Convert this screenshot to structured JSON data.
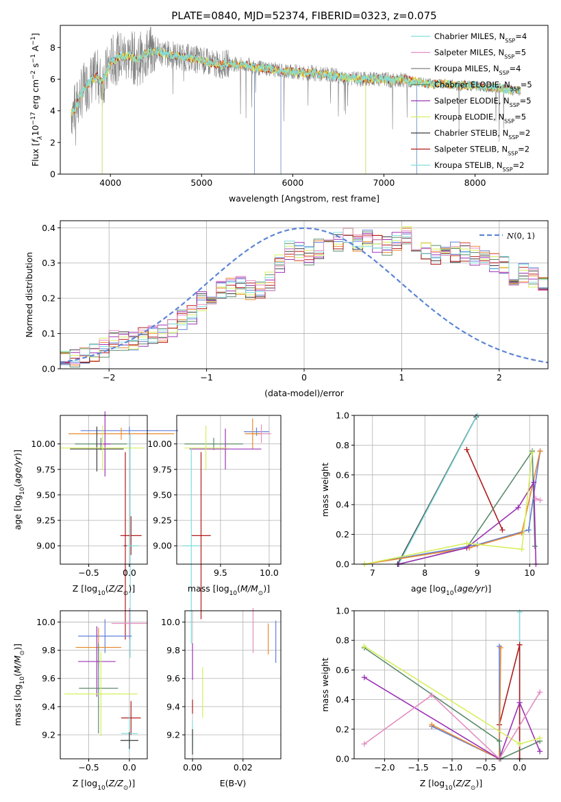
{
  "title": "PLATE=0840, MJD=52374, FIBERID=0323, z=0.075",
  "colors": {
    "Chabrier MILES": "#5e7fd8",
    "Salpeter MILES": "#e98a2f",
    "Kroupa MILES": "#5a8a6a",
    "Chabrier ELODIE": "#3a3a3a",
    "Salpeter ELODIE": "#9b30b5",
    "Kroupa ELODIE": "#d4ef5a",
    "Chabrier STELIB": "#666666",
    "Salpeter STELIB": "#b01818",
    "Kroupa STELIB": "#7fdcdc",
    "data": "#808080",
    "pinkish": "#e38cc0",
    "gauss": "#5b84d6"
  },
  "chart_data": [
    {
      "type": "line",
      "name": "spectrum",
      "xlabel": "wavelength [Angstrom, rest frame]",
      "ylabel": "Flux [f_λ 10^-17 erg cm^-2 s^-1 A^-1]",
      "xlim": [
        3450,
        8800
      ],
      "ylim": [
        0,
        9.4
      ],
      "xticks": [
        4000,
        5000,
        6000,
        7000,
        8000
      ],
      "yticks": [
        0,
        2,
        4,
        6,
        8
      ],
      "legend_position": "upper right",
      "legend": [
        {
          "label": "Chabrier MILES, N",
          "sub": "SSP",
          "suffix": "=4",
          "color": "#7fdcdc"
        },
        {
          "label": "Salpeter MILES, N",
          "sub": "SSP",
          "suffix": "=5",
          "color": "#e38cc0"
        },
        {
          "label": "Kroupa MILES, N",
          "sub": "SSP",
          "suffix": "=4",
          "color": "#808080"
        },
        {
          "label": "Chabrier ELODIE, N",
          "sub": "SSP",
          "suffix": "=5",
          "color": "#5a8a6a"
        },
        {
          "label": "Salpeter ELODIE, N",
          "sub": "SSP",
          "suffix": "=5",
          "color": "#9b30b5"
        },
        {
          "label": "Kroupa ELODIE, N",
          "sub": "SSP",
          "suffix": "=5",
          "color": "#d4ef5a"
        },
        {
          "label": "Chabrier STELIB, N",
          "sub": "SSP",
          "suffix": "=2",
          "color": "#3a3a3a"
        },
        {
          "label": "Salpeter STELIB, N",
          "sub": "SSP",
          "suffix": "=2",
          "color": "#b01818"
        },
        {
          "label": "Kroupa STELIB, N",
          "sub": "SSP",
          "suffix": "=2",
          "color": "#7fdcdc"
        }
      ],
      "model_continuum": [
        [
          3570,
          3.9
        ],
        [
          3620,
          4.2
        ],
        [
          3700,
          5.3
        ],
        [
          3780,
          5.9
        ],
        [
          3860,
          6.2
        ],
        [
          3900,
          5.8
        ],
        [
          3960,
          6.4
        ],
        [
          4000,
          7.1
        ],
        [
          4100,
          7.4
        ],
        [
          4200,
          7.5
        ],
        [
          4300,
          7.2
        ],
        [
          4400,
          7.7
        ],
        [
          4500,
          7.8
        ],
        [
          4600,
          7.6
        ],
        [
          4700,
          7.5
        ],
        [
          4800,
          7.4
        ],
        [
          4900,
          7.3
        ],
        [
          5000,
          7.2
        ],
        [
          5100,
          7.0
        ],
        [
          5200,
          6.9
        ],
        [
          5300,
          7.0
        ],
        [
          5400,
          6.9
        ],
        [
          5500,
          6.9
        ],
        [
          5600,
          6.7
        ],
        [
          5700,
          6.7
        ],
        [
          5800,
          6.6
        ],
        [
          5900,
          6.5
        ],
        [
          6000,
          6.5
        ],
        [
          6100,
          6.4
        ],
        [
          6200,
          6.4
        ],
        [
          6300,
          6.3
        ],
        [
          6400,
          6.3
        ],
        [
          6500,
          6.2
        ],
        [
          6600,
          6.1
        ],
        [
          6700,
          6.0
        ],
        [
          6800,
          6.0
        ],
        [
          6900,
          6.0
        ],
        [
          7000,
          6.0
        ],
        [
          7100,
          5.9
        ],
        [
          7200,
          6.0
        ],
        [
          7300,
          5.9
        ],
        [
          7400,
          5.8
        ],
        [
          7500,
          5.7
        ],
        [
          7600,
          5.7
        ],
        [
          7700,
          5.7
        ],
        [
          7800,
          5.6
        ],
        [
          7900,
          5.6
        ],
        [
          8000,
          5.6
        ],
        [
          8100,
          5.5
        ],
        [
          8200,
          5.5
        ],
        [
          8300,
          5.4
        ],
        [
          8400,
          5.3
        ],
        [
          8500,
          5.3
        ]
      ]
    },
    {
      "type": "line",
      "name": "residual-histogram",
      "xlabel": "(data-model)/error",
      "ylabel": "Normed distribution",
      "xlim": [
        -2.5,
        2.5
      ],
      "ylim": [
        0,
        0.42
      ],
      "xticks": [
        -2,
        -1,
        0,
        1,
        2
      ],
      "yticks": [
        0.0,
        0.1,
        0.2,
        0.3,
        0.4
      ],
      "grid": true,
      "legend_position": "upper right",
      "legend": [
        {
          "label": "N(0,1)"
        }
      ],
      "bin_width": 0.1,
      "histogram_range": [
        -2.5,
        2.5
      ],
      "histogram_values": [
        0.03,
        0.03,
        0.04,
        0.05,
        0.06,
        0.08,
        0.08,
        0.08,
        0.09,
        0.1,
        0.1,
        0.12,
        0.14,
        0.15,
        0.19,
        0.2,
        0.22,
        0.23,
        0.24,
        0.22,
        0.22,
        0.25,
        0.3,
        0.34,
        0.33,
        0.32,
        0.34,
        0.36,
        0.36,
        0.37,
        0.36,
        0.37,
        0.36,
        0.35,
        0.36,
        0.38,
        0.35,
        0.33,
        0.32,
        0.33,
        0.33,
        0.33,
        0.32,
        0.32,
        0.3,
        0.29,
        0.26,
        0.27,
        0.26,
        0.24
      ]
    },
    {
      "type": "scatter",
      "name": "age-vs-Z",
      "xlabel": "Z [log10(Z/Z⊙)]",
      "ylabel": "age  [log10(age/yr)]",
      "xlim": [
        -0.85,
        0.22
      ],
      "ylim": [
        8.82,
        10.28
      ],
      "xticks": [
        -0.5,
        0.0
      ],
      "yticks": [
        9.0,
        9.25,
        9.5,
        9.75,
        10.0
      ],
      "points": [
        {
          "x": 0.0,
          "y": 10.13,
          "xerr": 0.6,
          "yerr": 0.04,
          "color": "#5e7fd8"
        },
        {
          "x": -0.1,
          "y": 10.1,
          "xerr": 0.65,
          "yerr": 0.06,
          "color": "#e98a2f"
        },
        {
          "x": -0.35,
          "y": 10.0,
          "xerr": 0.32,
          "yerr": 0.06,
          "color": "#5a8a6a"
        },
        {
          "x": -0.4,
          "y": 9.95,
          "xerr": 0.33,
          "yerr": 0.22,
          "color": "#3a3a3a"
        },
        {
          "x": -0.3,
          "y": 10.0,
          "xerr": 0.07,
          "yerr": 0.32,
          "color": "#9b30b5"
        },
        {
          "x": -0.33,
          "y": 9.96,
          "xerr": 0.52,
          "yerr": 0.22,
          "color": "#d4ef5a"
        },
        {
          "x": 0.02,
          "y": 9.1,
          "xerr": 0.13,
          "yerr": 0.19,
          "color": "#b01818"
        },
        {
          "x": 0.01,
          "y": 9.0,
          "xerr": 0.1,
          "yerr": 1.1,
          "color": "#7fdcdc"
        },
        {
          "x": -0.05,
          "y": 9.0,
          "xerr": 0.02,
          "yerr": 0.92,
          "color": "#b01818"
        }
      ]
    },
    {
      "type": "scatter",
      "name": "age-vs-mass",
      "xlabel": "mass [log10(M/M⊙)]",
      "ylabel": "",
      "xlim": [
        9.05,
        10.12
      ],
      "ylim": [
        8.82,
        10.28
      ],
      "xticks": [
        9.5,
        10.0
      ],
      "yticks": [
        9.0,
        9.25,
        9.5,
        9.75,
        10.0
      ],
      "points": [
        {
          "x": 9.87,
          "y": 10.12,
          "xerr": 0.13,
          "yerr": 0.04,
          "color": "#5e7fd8"
        },
        {
          "x": 9.92,
          "y": 10.1,
          "xerr": 0.1,
          "yerr": 0.09,
          "color": "#e38cc0"
        },
        {
          "x": 9.83,
          "y": 10.1,
          "xerr": 0.08,
          "yerr": 0.15,
          "color": "#e98a2f"
        },
        {
          "x": 9.43,
          "y": 10.0,
          "xerr": 0.3,
          "yerr": 0.06,
          "color": "#5a8a6a"
        },
        {
          "x": 9.55,
          "y": 9.95,
          "xerr": 0.37,
          "yerr": 0.2,
          "color": "#9b30b5"
        },
        {
          "x": 9.35,
          "y": 9.96,
          "xerr": 0.22,
          "yerr": 0.22,
          "color": "#d4ef5a"
        },
        {
          "x": 9.3,
          "y": 9.1,
          "xerr": 0.1,
          "yerr": 0.82,
          "color": "#b01818"
        },
        {
          "x": 9.2,
          "y": 9.0,
          "xerr": 0.09,
          "yerr": 0.96,
          "color": "#7fdcdc"
        }
      ]
    },
    {
      "type": "line",
      "name": "weight-vs-age",
      "xlabel": "age  [log10(age/yr)]",
      "ylabel": "mass weight",
      "xlim": [
        6.65,
        10.35
      ],
      "ylim": [
        0,
        1.0
      ],
      "xticks": [
        7,
        8,
        9,
        10
      ],
      "yticks": [
        0.0,
        0.2,
        0.4,
        0.6,
        0.8,
        1.0
      ],
      "grid": true,
      "series": [
        {
          "color": "#3a3a3a",
          "points": [
            [
              7.48,
              0.0
            ],
            [
              8.98,
              0.99
            ]
          ]
        },
        {
          "color": "#7fdcdc",
          "points": [
            [
              7.5,
              0.0
            ],
            [
              9.0,
              1.0
            ]
          ]
        },
        {
          "color": "#b01818",
          "points": [
            [
              8.8,
              0.77
            ],
            [
              9.48,
              0.23
            ]
          ]
        },
        {
          "color": "#5e7fd8",
          "points": [
            [
              6.85,
              0.0
            ],
            [
              9.0,
              0.13
            ],
            [
              9.98,
              0.23
            ],
            [
              10.2,
              0.76
            ]
          ]
        },
        {
          "color": "#e98a2f",
          "points": [
            [
              6.85,
              0.0
            ],
            [
              8.85,
              0.11
            ],
            [
              9.85,
              0.21
            ],
            [
              10.2,
              0.76
            ]
          ]
        },
        {
          "color": "#5a8a6a",
          "points": [
            [
              7.5,
              0.0
            ],
            [
              8.8,
              0.11
            ],
            [
              10.05,
              0.76
            ],
            [
              10.1,
              0.12
            ]
          ]
        },
        {
          "color": "#9b30b5",
          "points": [
            [
              7.5,
              0.0
            ],
            [
              8.8,
              0.11
            ],
            [
              9.78,
              0.38
            ],
            [
              10.08,
              0.55
            ],
            [
              10.12,
              0.0
            ]
          ]
        },
        {
          "color": "#d4ef5a",
          "points": [
            [
              6.85,
              0.0
            ],
            [
              8.8,
              0.14
            ],
            [
              9.85,
              0.1
            ],
            [
              10.05,
              0.75
            ]
          ]
        },
        {
          "color": "#e38cc0",
          "points": [
            [
              10.12,
              0.44
            ],
            [
              10.2,
              0.43
            ]
          ]
        }
      ]
    },
    {
      "type": "scatter",
      "name": "mass-vs-Z",
      "xlabel": "Z [log10(Z/Z⊙)]",
      "ylabel": "mass [log10(M/M⊙)]",
      "xlim": [
        -0.85,
        0.22
      ],
      "ylim": [
        9.03,
        10.08
      ],
      "xticks": [
        -0.5,
        0.0
      ],
      "yticks": [
        9.2,
        9.4,
        9.6,
        9.8,
        10.0
      ],
      "points": [
        {
          "x": 0.0,
          "y": 9.99,
          "xerr": 0.22,
          "yerr": 0.11,
          "color": "#e38cc0"
        },
        {
          "x": -0.3,
          "y": 9.9,
          "xerr": 0.33,
          "yerr": 0.12,
          "color": "#5e7fd8"
        },
        {
          "x": -0.38,
          "y": 9.82,
          "xerr": 0.28,
          "yerr": 0.14,
          "color": "#e98a2f"
        },
        {
          "x": -0.4,
          "y": 9.72,
          "xerr": 0.23,
          "yerr": 0.25,
          "color": "#9b30b5"
        },
        {
          "x": -0.38,
          "y": 9.53,
          "xerr": 0.24,
          "yerr": 0.32,
          "color": "#5a8a6a"
        },
        {
          "x": -0.35,
          "y": 9.49,
          "xerr": 0.45,
          "yerr": 0.3,
          "color": "#d4ef5a"
        },
        {
          "x": 0.02,
          "y": 9.32,
          "xerr": 0.12,
          "yerr": 0.12,
          "color": "#b01818"
        },
        {
          "x": 0.0,
          "y": 9.21,
          "xerr": 0.1,
          "yerr": 0.13,
          "color": "#7fdcdc"
        },
        {
          "x": 0.0,
          "y": 9.16,
          "xerr": 0.11,
          "yerr": 0.06,
          "color": "#3a3a3a"
        }
      ]
    },
    {
      "type": "scatter",
      "name": "mass-vs-EBV",
      "xlabel": "E(B-V)",
      "ylabel": "",
      "xlim": [
        -0.003,
        0.035
      ],
      "ylim": [
        9.03,
        10.08
      ],
      "xticks": [
        0.0,
        0.02
      ],
      "yticks": [
        9.2,
        9.4,
        9.6,
        9.8,
        10.0
      ],
      "points": [
        {
          "x": 0.0,
          "y": 9.72,
          "yerr": 0.13,
          "color": "#9b30b5"
        },
        {
          "x": 0.0,
          "y": 9.4,
          "yerr": 0.05,
          "color": "#b01818"
        },
        {
          "x": 0.0,
          "y": 9.2,
          "yerr": 0.1,
          "color": "#7fdcdc"
        },
        {
          "x": 0.0,
          "y": 9.15,
          "yerr": 0.09,
          "color": "#3a3a3a"
        },
        {
          "x": 0.004,
          "y": 9.5,
          "yerr": 0.18,
          "color": "#d4ef5a"
        },
        {
          "x": 0.024,
          "y": 9.94,
          "yerr": 0.16,
          "color": "#e38cc0"
        },
        {
          "x": 0.03,
          "y": 9.88,
          "yerr": 0.11,
          "color": "#e98a2f"
        },
        {
          "x": 0.033,
          "y": 9.86,
          "yerr": 0.15,
          "color": "#5e7fd8"
        }
      ]
    },
    {
      "type": "line",
      "name": "weight-vs-Z",
      "xlabel": "Z [log10(Z/Z⊙)]",
      "ylabel": "mass weight",
      "xlim": [
        -2.45,
        0.42
      ],
      "ylim": [
        0,
        1.0
      ],
      "xticks": [
        -2.0,
        -1.5,
        -1.0,
        -0.5,
        0.0
      ],
      "yticks": [
        0.0,
        0.2,
        0.4,
        0.6,
        0.8,
        1.0
      ],
      "grid": true,
      "series": [
        {
          "color": "#7fdcdc",
          "points": [
            [
              0.0,
              0.0
            ],
            [
              0.0,
              0.99
            ]
          ]
        },
        {
          "color": "#b01818",
          "points": [
            [
              -0.3,
              0.23
            ],
            [
              0.0,
              0.77
            ],
            [
              -0.0,
              0.0
            ]
          ]
        },
        {
          "color": "#5e7fd8",
          "points": [
            [
              -1.3,
              0.22
            ],
            [
              -0.3,
              0.0
            ],
            [
              -0.3,
              0.76
            ]
          ]
        },
        {
          "color": "#e98a2f",
          "points": [
            [
              -1.3,
              0.23
            ],
            [
              -0.3,
              0.0
            ],
            [
              -0.28,
              0.75
            ]
          ]
        },
        {
          "color": "#5a8a6a",
          "points": [
            [
              -2.3,
              0.75
            ],
            [
              -0.3,
              0.12
            ],
            [
              -0.28,
              0.0
            ],
            [
              0.3,
              0.12
            ]
          ]
        },
        {
          "color": "#9b30b5",
          "points": [
            [
              -2.3,
              0.55
            ],
            [
              -0.3,
              0.0
            ],
            [
              0.0,
              0.38
            ],
            [
              0.3,
              0.05
            ]
          ]
        },
        {
          "color": "#d4ef5a",
          "points": [
            [
              -2.3,
              0.76
            ],
            [
              0.0,
              0.1
            ],
            [
              0.3,
              0.14
            ]
          ]
        },
        {
          "color": "#e38cc0",
          "points": [
            [
              -2.3,
              0.1
            ],
            [
              -1.3,
              0.43
            ],
            [
              -0.3,
              0.0
            ],
            [
              0.3,
              0.45
            ]
          ]
        }
      ]
    }
  ]
}
